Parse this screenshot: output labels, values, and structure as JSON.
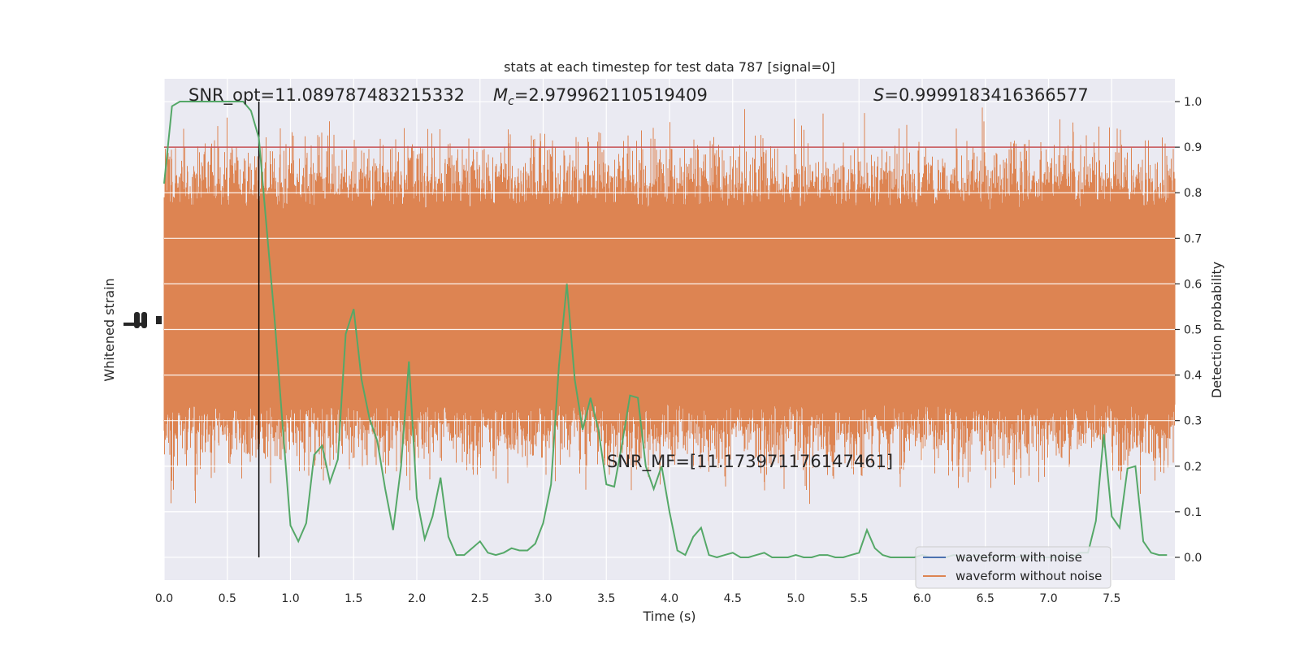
{
  "chart_data": {
    "type": "line",
    "title": "stats at each timestep for test data 787 [signal=0]",
    "xlabel": "Time (s)",
    "ylabel_left": "Whitened strain",
    "ylabel_right": "Detection probability",
    "xlim": [
      0.0,
      8.0
    ],
    "ylim_right": [
      -0.05,
      1.05
    ],
    "x_ticks": [
      "0.0",
      "0.5",
      "1.0",
      "1.5",
      "2.0",
      "2.5",
      "3.0",
      "3.5",
      "4.0",
      "4.5",
      "5.0",
      "5.5",
      "6.0",
      "6.5",
      "7.0",
      "7.5"
    ],
    "y_ticks_right": [
      "0.0",
      "0.1",
      "0.2",
      "0.3",
      "0.4",
      "0.5",
      "0.6",
      "0.7",
      "0.8",
      "0.9",
      "1.0"
    ],
    "grid": true,
    "legend_position": "lower-right",
    "annotations": {
      "snr_opt": "SNR_opt=11.089787483215332",
      "mc_symbol": "M",
      "mc_sub": "c",
      "mc_value": "=2.979962110519409",
      "s_symbol": "S",
      "s_value": "=0.9999183416366577",
      "snr_mf": "SNR_MF=[11.173971176147461]"
    },
    "threshold": 0.9,
    "marker_time": 0.75,
    "series": [
      {
        "name": "waveform with noise",
        "color": "#4c72b0",
        "values": []
      },
      {
        "name": "waveform without noise",
        "color": "#dd8452",
        "amplitude_range": [
          0.0,
          1.0
        ]
      },
      {
        "color": "#55a868",
        "x": [
          0.0,
          0.0625,
          0.125,
          0.1875,
          0.25,
          0.3125,
          0.375,
          0.4375,
          0.5,
          0.5625,
          0.625,
          0.6875,
          0.75,
          0.8125,
          0.875,
          0.9375,
          1.0,
          1.0625,
          1.125,
          1.1875,
          1.25,
          1.3125,
          1.375,
          1.4375,
          1.5,
          1.5625,
          1.625,
          1.6875,
          1.75,
          1.8125,
          1.875,
          1.9375,
          2.0,
          2.0625,
          2.125,
          2.1875,
          2.25,
          2.3125,
          2.375,
          2.4375,
          2.5,
          2.5625,
          2.625,
          2.6875,
          2.75,
          2.8125,
          2.875,
          2.9375,
          3.0,
          3.0625,
          3.125,
          3.1875,
          3.25,
          3.3125,
          3.375,
          3.4375,
          3.5,
          3.5625,
          3.625,
          3.6875,
          3.75,
          3.8125,
          3.875,
          3.9375,
          4.0,
          4.0625,
          4.125,
          4.1875,
          4.25,
          4.3125,
          4.375,
          4.4375,
          4.5,
          4.5625,
          4.625,
          4.6875,
          4.75,
          4.8125,
          4.875,
          4.9375,
          5.0,
          5.0625,
          5.125,
          5.1875,
          5.25,
          5.3125,
          5.375,
          5.4375,
          5.5,
          5.5625,
          5.625,
          5.6875,
          5.75,
          5.8125,
          5.875,
          5.9375,
          6.0,
          6.0625,
          6.125,
          6.1875,
          6.25,
          6.3125,
          6.375,
          6.4375,
          6.5,
          6.5625,
          6.625,
          6.6875,
          6.75,
          6.8125,
          6.875,
          6.9375,
          7.0,
          7.0625,
          7.125,
          7.1875,
          7.25,
          7.3125,
          7.375,
          7.4375,
          7.5,
          7.5625,
          7.625,
          7.6875,
          7.75,
          7.8125,
          7.875,
          7.9375
        ],
        "values": [
          0.82,
          0.99,
          1.0,
          1.0,
          1.0,
          1.0,
          1.0,
          1.0,
          1.0,
          1.0,
          1.0,
          0.98,
          0.92,
          0.72,
          0.52,
          0.29,
          0.07,
          0.035,
          0.075,
          0.225,
          0.245,
          0.165,
          0.215,
          0.49,
          0.545,
          0.39,
          0.305,
          0.255,
          0.15,
          0.06,
          0.2,
          0.43,
          0.13,
          0.04,
          0.09,
          0.175,
          0.045,
          0.005,
          0.005,
          0.02,
          0.035,
          0.01,
          0.005,
          0.01,
          0.02,
          0.015,
          0.015,
          0.03,
          0.075,
          0.16,
          0.42,
          0.6,
          0.39,
          0.28,
          0.35,
          0.28,
          0.16,
          0.155,
          0.25,
          0.355,
          0.35,
          0.2,
          0.15,
          0.2,
          0.1,
          0.015,
          0.005,
          0.045,
          0.065,
          0.005,
          0.0,
          0.005,
          0.01,
          0.0,
          0.0,
          0.005,
          0.01,
          0.0,
          0.0,
          0.0,
          0.005,
          0.0,
          0.0,
          0.005,
          0.005,
          0.0,
          0.0,
          0.005,
          0.01,
          0.06,
          0.02,
          0.005,
          0.0,
          0.0,
          0.0,
          0.0,
          0.005,
          0.0,
          0.0,
          0.0,
          0.005,
          0.0,
          0.0,
          0.005,
          0.0,
          0.0,
          0.005,
          0.0,
          0.0,
          0.005,
          0.0,
          0.0,
          0.0,
          0.0,
          0.005,
          0.0,
          0.01,
          0.01,
          0.08,
          0.27,
          0.09,
          0.065,
          0.195,
          0.2,
          0.035,
          0.01,
          0.005,
          0.005
        ]
      }
    ]
  }
}
